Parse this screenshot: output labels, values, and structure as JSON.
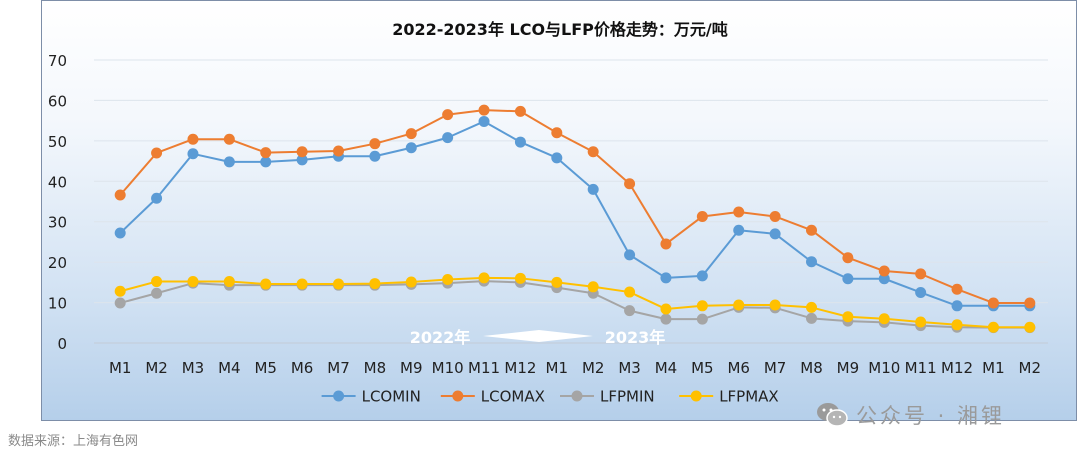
{
  "source_note": "数据来源：上海有色网",
  "watermark": {
    "text": "公众号 · 湘锂",
    "icon": "wechat-icon"
  },
  "chart_data": {
    "type": "line",
    "title": "2022-2023年 LCO与LFP价格走势：万元/吨",
    "categories": [
      "M1",
      "M2",
      "M3",
      "M4",
      "M5",
      "M6",
      "M7",
      "M8",
      "M9",
      "M10",
      "M11",
      "M12",
      "M1",
      "M2",
      "M3",
      "M4",
      "M5",
      "M6",
      "M7",
      "M8",
      "M9",
      "M10",
      "M11",
      "M12",
      "M1",
      "M2"
    ],
    "ylim": [
      0,
      70
    ],
    "yticks": [
      0,
      10,
      20,
      30,
      40,
      50,
      60,
      70
    ],
    "grid": true,
    "legend_position": "bottom",
    "year_annotation": {
      "from": "2022年",
      "to": "2023年"
    },
    "series": [
      {
        "name": "LCOMIN",
        "color": "#5b9bd5",
        "values": [
          27.2,
          35.8,
          46.8,
          44.8,
          44.8,
          45.3,
          46.2,
          46.2,
          48.3,
          50.8,
          54.8,
          49.7,
          45.8,
          38.0,
          21.8,
          16.1,
          16.6,
          27.9,
          27.0,
          20.1,
          15.9,
          15.9,
          12.5,
          9.2,
          9.2,
          9.2
        ]
      },
      {
        "name": "LCOMAX",
        "color": "#ed7d31",
        "values": [
          36.6,
          47.0,
          50.4,
          50.4,
          47.1,
          47.3,
          47.5,
          49.3,
          51.8,
          56.5,
          57.6,
          57.3,
          52.0,
          47.3,
          39.4,
          24.5,
          31.3,
          32.4,
          31.3,
          27.9,
          21.1,
          17.8,
          17.1,
          13.3,
          9.9,
          9.9
        ]
      },
      {
        "name": "LFPMIN",
        "color": "#a5a5a5",
        "values": [
          9.9,
          12.3,
          14.8,
          14.3,
          14.3,
          14.3,
          14.3,
          14.3,
          14.5,
          14.8,
          15.3,
          15.0,
          13.7,
          12.3,
          8.0,
          5.9,
          5.9,
          8.8,
          8.7,
          6.1,
          5.4,
          5.1,
          4.3,
          3.9,
          3.8,
          3.8
        ]
      },
      {
        "name": "LFPMAX",
        "color": "#ffc000",
        "values": [
          12.8,
          15.2,
          15.2,
          15.2,
          14.6,
          14.6,
          14.6,
          14.7,
          15.1,
          15.7,
          16.1,
          16.0,
          15.0,
          13.9,
          12.6,
          8.4,
          9.2,
          9.4,
          9.4,
          8.8,
          6.5,
          6.0,
          5.2,
          4.5,
          3.9,
          3.9
        ]
      }
    ]
  }
}
